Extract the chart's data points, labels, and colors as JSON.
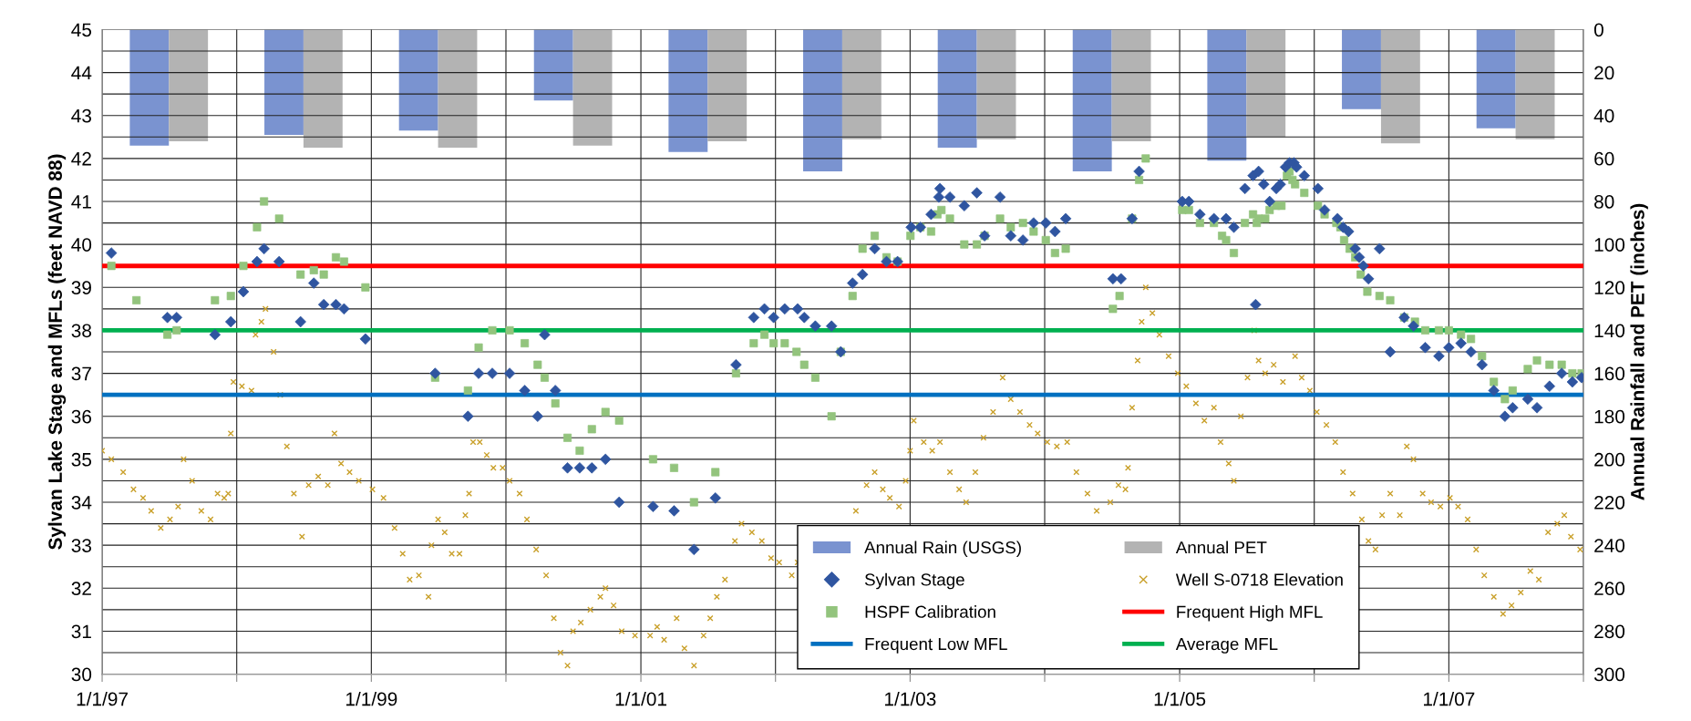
{
  "chart_data": {
    "type": "scatter",
    "ylabel": "Sylvan Lake Stage and MFLs (feet NAVD 88)",
    "y2label": "Annual Rainfall and PET (inches)",
    "xlim": [
      "1997-01-01",
      "2008-01-01"
    ],
    "xticks": [
      {
        "value": "1997-01-01",
        "label": "1/1/97"
      },
      {
        "value": "1998-01-01",
        "label": null
      },
      {
        "value": "1999-01-01",
        "label": "1/1/99"
      },
      {
        "value": "2000-01-01",
        "label": null
      },
      {
        "value": "2001-01-01",
        "label": "1/1/01"
      },
      {
        "value": "2002-01-01",
        "label": null
      },
      {
        "value": "2003-01-01",
        "label": "1/1/03"
      },
      {
        "value": "2004-01-01",
        "label": null
      },
      {
        "value": "2005-01-01",
        "label": "1/1/05"
      },
      {
        "value": "2006-01-01",
        "label": null
      },
      {
        "value": "2007-01-01",
        "label": "1/1/07"
      },
      {
        "value": "2008-01-01",
        "label": null
      }
    ],
    "ylim": [
      30,
      45
    ],
    "yticks": [
      30,
      {
        "value": 30.5,
        "label": null
      },
      31,
      {
        "value": 31.5,
        "label": null
      },
      32,
      {
        "value": 32.5,
        "label": null
      },
      33,
      {
        "value": 33.5,
        "label": null
      },
      34,
      {
        "value": 34.5,
        "label": null
      },
      35,
      {
        "value": 35.5,
        "label": null
      },
      36,
      {
        "value": 36.5,
        "label": null
      },
      37,
      {
        "value": 37.5,
        "label": null
      },
      38,
      {
        "value": 38.5,
        "label": null
      },
      39,
      {
        "value": 39.5,
        "label": null
      },
      40,
      {
        "value": 40.5,
        "label": null
      },
      41,
      {
        "value": 41.5,
        "label": null
      },
      42,
      {
        "value": 42.5,
        "label": null
      },
      43,
      {
        "value": 43.5,
        "label": null
      },
      44,
      {
        "value": 44.5,
        "label": null
      },
      45
    ],
    "y2lim": [
      300,
      0
    ],
    "y2ticks": [
      0,
      20,
      40,
      60,
      80,
      100,
      120,
      140,
      160,
      180,
      200,
      220,
      240,
      260,
      280,
      300
    ],
    "grid": true,
    "legend": "bottom",
    "series": [
      {
        "name": "Annual Rain (USGS)",
        "type": "bar",
        "axis": "y2",
        "color": "#7a93d0",
        "x": [
          "1997-07-01",
          "1998-07-01",
          "1999-07-01",
          "2000-07-01",
          "2001-07-01",
          "2002-07-01",
          "2003-07-01",
          "2004-07-01",
          "2005-07-01",
          "2006-07-01",
          "2007-07-01"
        ],
        "values": [
          54,
          49,
          47,
          33,
          57,
          66,
          55,
          66,
          61,
          37,
          46
        ]
      },
      {
        "name": "Annual PET",
        "type": "bar",
        "axis": "y2",
        "color": "#b3b3b3",
        "x": [
          "1997-07-01",
          "1998-07-01",
          "1999-07-01",
          "2000-07-01",
          "2001-07-01",
          "2002-07-01",
          "2003-07-01",
          "2004-07-01",
          "2005-07-01",
          "2006-07-01",
          "2007-07-01"
        ],
        "values": [
          52,
          55,
          55,
          54,
          52,
          51,
          51,
          52,
          50,
          53,
          51
        ]
      },
      {
        "name": "Sylvan Stage",
        "marker": "diamond",
        "color": "#2f55a0",
        "x": [
          "1997-01-26",
          "1997-06-27",
          "1997-07-22",
          "1997-11-03",
          "1997-12-16",
          "1998-01-19",
          "1998-02-25",
          "1998-03-16",
          "1998-04-26",
          "1998-06-23",
          "1998-07-29",
          "1998-08-25",
          "1998-09-27",
          "1998-10-19",
          "1998-12-16",
          "1999-06-23",
          "1999-09-20",
          "1999-10-19",
          "1999-11-25",
          "2000-01-11",
          "2000-02-21",
          "2000-03-27",
          "2000-04-15",
          "2000-05-14",
          "2000-06-16",
          "2000-07-19",
          "2000-08-21",
          "2000-09-27",
          "2000-11-03",
          "2001-02-03",
          "2001-04-01",
          "2001-05-25",
          "2001-07-22",
          "2001-09-16",
          "2001-11-03",
          "2001-12-02",
          "2001-12-27",
          "2002-01-26",
          "2002-03-02",
          "2002-03-20",
          "2002-04-19",
          "2002-06-02",
          "2002-06-27",
          "2002-07-29",
          "2002-08-25",
          "2002-09-27",
          "2002-10-29",
          "2002-11-28",
          "2003-01-04",
          "2003-01-29",
          "2003-02-27",
          "2003-03-20",
          "2003-03-23",
          "2003-04-19",
          "2003-05-28",
          "2003-07-01",
          "2003-07-22",
          "2003-09-02",
          "2003-10-01",
          "2003-11-03",
          "2003-12-02",
          "2004-01-04",
          "2004-01-29",
          "2004-02-27",
          "2004-07-04",
          "2004-07-26",
          "2004-08-25",
          "2004-09-13",
          "2005-01-08",
          "2005-01-26",
          "2005-02-25",
          "2005-04-04",
          "2005-05-07",
          "2005-05-28",
          "2005-06-27",
          "2005-07-19",
          "2005-07-26",
          "2005-08-03",
          "2005-08-17",
          "2005-09-02",
          "2005-09-20",
          "2005-10-01",
          "2005-10-15",
          "2005-10-26",
          "2005-11-07",
          "2005-11-14",
          "2005-12-05",
          "2006-01-11",
          "2006-01-29",
          "2006-03-05",
          "2006-03-20",
          "2006-04-04",
          "2006-04-22",
          "2006-05-03",
          "2006-05-14",
          "2006-05-28",
          "2006-06-27",
          "2006-07-26",
          "2006-09-02",
          "2006-09-27",
          "2006-10-29",
          "2006-12-05",
          "2007-01-01",
          "2007-02-03",
          "2007-03-02",
          "2007-04-01",
          "2007-05-03",
          "2007-06-02",
          "2007-06-23",
          "2007-08-03",
          "2007-08-28",
          "2007-10-01",
          "2007-11-03",
          "2007-12-02",
          "2007-12-27"
        ],
        "values": [
          39.8,
          38.3,
          38.3,
          37.9,
          38.2,
          38.9,
          39.6,
          39.9,
          39.6,
          38.2,
          39.1,
          38.6,
          38.6,
          38.5,
          37.8,
          37.0,
          36.0,
          37.0,
          37.0,
          37.0,
          36.6,
          36.0,
          37.9,
          36.6,
          34.8,
          34.8,
          34.8,
          35.0,
          34.0,
          33.9,
          33.8,
          32.9,
          34.1,
          37.2,
          38.3,
          38.5,
          38.3,
          38.5,
          38.5,
          38.3,
          38.1,
          38.1,
          37.5,
          39.1,
          39.3,
          39.9,
          39.6,
          39.6,
          40.4,
          40.4,
          40.7,
          41.1,
          41.3,
          41.1,
          40.9,
          41.2,
          40.2,
          41.1,
          40.2,
          40.1,
          40.5,
          40.5,
          40.3,
          40.6,
          39.2,
          39.2,
          40.6,
          41.7,
          41.0,
          41.0,
          40.7,
          40.6,
          40.6,
          40.4,
          41.3,
          41.6,
          38.6,
          41.7,
          41.4,
          41.0,
          41.3,
          41.4,
          41.8,
          41.9,
          41.9,
          41.8,
          41.6,
          41.3,
          40.8,
          40.6,
          40.4,
          40.3,
          39.9,
          39.7,
          39.5,
          39.2,
          39.9,
          37.5,
          38.3,
          38.1,
          37.6,
          37.4,
          37.6,
          37.7,
          37.5,
          37.2,
          36.6,
          36.0,
          36.2,
          36.4,
          36.2,
          36.7,
          37.0,
          36.8,
          36.9
        ]
      },
      {
        "name": "Well S-0718 Elevation",
        "marker": "cross",
        "color": "#c9a02a",
        "x": [
          "1997-01-01",
          "1997-01-26",
          "1997-02-27",
          "1997-03-27",
          "1997-04-22",
          "1997-05-14",
          "1997-06-09",
          "1997-07-04",
          "1997-07-26",
          "1997-08-10",
          "1997-09-02",
          "1997-09-27",
          "1997-10-22",
          "1997-11-10",
          "1997-11-28",
          "1997-12-09",
          "1997-12-16",
          "1997-12-23",
          "1998-01-15",
          "1998-02-10",
          "1998-02-21",
          "1998-03-09",
          "1998-03-20",
          "1998-04-11",
          "1998-04-29",
          "1998-05-17",
          "1998-06-05",
          "1998-06-27",
          "1998-07-15",
          "1998-08-10",
          "1998-09-05",
          "1998-09-23",
          "1998-10-11",
          "1998-11-03",
          "1998-11-28",
          "1999-01-04",
          "1999-02-03",
          "1999-03-05",
          "1999-03-27",
          "1999-04-15",
          "1999-05-10",
          "1999-06-05",
          "1999-06-13",
          "1999-07-01",
          "1999-07-19",
          "1999-08-07",
          "1999-08-28",
          "1999-09-13",
          "1999-09-23",
          "1999-10-04",
          "1999-10-22",
          "1999-11-10",
          "1999-11-28",
          "1999-12-23",
          "2000-01-11",
          "2000-02-07",
          "2000-02-27",
          "2000-03-23",
          "2000-04-19",
          "2000-05-10",
          "2000-05-28",
          "2000-06-16",
          "2000-07-01",
          "2000-07-22",
          "2000-08-17",
          "2000-09-13",
          "2000-09-27",
          "2000-10-19",
          "2000-11-10",
          "2000-12-16",
          "2001-01-26",
          "2001-02-14",
          "2001-03-05",
          "2001-04-08",
          "2001-04-29",
          "2001-05-25",
          "2001-06-20",
          "2001-07-08",
          "2001-07-26",
          "2001-08-17",
          "2001-09-13",
          "2001-10-01",
          "2001-10-29",
          "2001-11-25",
          "2001-12-20",
          "2002-01-11",
          "2002-02-14",
          "2002-03-02",
          "2002-08-07",
          "2002-09-05",
          "2002-09-27",
          "2002-10-19",
          "2002-11-07",
          "2002-12-02",
          "2002-12-20",
          "2003-01-01",
          "2003-01-11",
          "2003-02-07",
          "2003-03-02",
          "2003-03-23",
          "2003-04-19",
          "2003-05-14",
          "2003-06-02",
          "2003-06-27",
          "2003-07-19",
          "2003-08-14",
          "2003-09-09",
          "2003-10-01",
          "2003-10-26",
          "2003-11-21",
          "2003-12-13",
          "2004-01-08",
          "2004-02-03",
          "2004-03-02",
          "2004-03-27",
          "2004-04-26",
          "2004-05-21",
          "2004-06-27",
          "2004-07-19",
          "2004-08-07",
          "2004-08-14",
          "2004-08-25",
          "2004-09-09",
          "2004-09-20",
          "2004-10-01",
          "2004-10-19",
          "2004-11-07",
          "2004-12-02",
          "2004-12-27",
          "2005-01-19",
          "2005-02-14",
          "2005-03-09",
          "2005-04-04",
          "2005-04-22",
          "2005-05-14",
          "2005-05-28",
          "2005-06-16",
          "2005-07-04",
          "2005-07-22",
          "2005-08-03",
          "2005-08-21",
          "2005-09-13",
          "2005-10-08",
          "2005-11-10",
          "2005-11-28",
          "2005-12-20",
          "2006-01-08",
          "2006-02-03",
          "2006-02-27",
          "2006-03-20",
          "2006-04-15",
          "2006-05-10",
          "2006-05-28",
          "2006-06-16",
          "2006-07-04",
          "2006-07-26",
          "2006-08-21",
          "2006-09-09",
          "2006-09-27",
          "2006-10-22",
          "2006-11-14",
          "2006-12-09",
          "2007-01-04",
          "2007-01-26",
          "2007-02-21",
          "2007-03-16",
          "2007-04-07",
          "2007-05-03",
          "2007-05-28",
          "2007-06-20",
          "2007-07-15",
          "2007-08-10",
          "2007-09-02",
          "2007-09-27",
          "2007-10-22",
          "2007-11-10",
          "2007-11-28",
          "2007-12-23"
        ],
        "values": [
          35.2,
          35.0,
          34.7,
          34.3,
          34.1,
          33.8,
          33.4,
          33.6,
          33.9,
          35.0,
          34.5,
          33.8,
          33.6,
          34.2,
          34.1,
          34.2,
          35.6,
          36.8,
          36.7,
          36.6,
          37.9,
          38.2,
          38.5,
          37.5,
          36.5,
          35.3,
          34.2,
          33.2,
          34.4,
          34.6,
          34.4,
          35.6,
          34.9,
          34.7,
          34.5,
          34.3,
          34.1,
          33.4,
          32.8,
          32.2,
          32.3,
          31.8,
          33.0,
          33.6,
          33.3,
          32.8,
          32.8,
          33.7,
          34.2,
          35.4,
          35.4,
          35.1,
          34.8,
          34.8,
          34.5,
          34.2,
          33.6,
          32.9,
          32.3,
          31.3,
          30.5,
          30.2,
          31.0,
          31.2,
          31.5,
          31.8,
          32.0,
          31.6,
          31.0,
          30.9,
          30.9,
          31.1,
          30.8,
          31.3,
          30.6,
          30.2,
          30.9,
          31.3,
          31.8,
          32.2,
          33.1,
          33.5,
          33.3,
          33.1,
          32.7,
          32.6,
          32.3,
          32.6,
          33.8,
          34.4,
          34.7,
          34.3,
          34.1,
          33.9,
          34.5,
          35.2,
          35.9,
          35.4,
          35.2,
          35.4,
          34.7,
          34.3,
          34.0,
          34.7,
          35.5,
          36.1,
          36.9,
          36.4,
          36.1,
          35.8,
          35.6,
          35.4,
          35.3,
          35.4,
          34.7,
          34.2,
          33.8,
          34.0,
          34.4,
          34.3,
          34.8,
          36.2,
          37.3,
          38.2,
          39.0,
          38.4,
          37.9,
          37.4,
          37.0,
          36.7,
          36.3,
          35.9,
          36.2,
          35.4,
          34.9,
          34.5,
          36.0,
          36.9,
          38.0,
          37.3,
          37.0,
          37.2,
          36.8,
          37.4,
          36.9,
          36.6,
          36.1,
          35.8,
          35.4,
          34.7,
          34.2,
          33.6,
          33.1,
          32.9,
          33.7,
          34.2,
          33.7,
          35.3,
          35.0,
          34.2,
          34.0,
          33.9,
          34.1,
          33.9,
          33.6,
          32.9,
          32.3,
          31.8,
          31.4,
          31.6,
          31.9,
          32.4,
          32.2,
          33.3,
          33.5,
          33.7,
          33.2,
          32.9
        ]
      },
      {
        "name": "HSPF Calibration",
        "marker": "square",
        "color": "#93c47d",
        "x": [
          "1997-01-26",
          "1997-04-04",
          "1997-06-27",
          "1997-07-22",
          "1997-11-03",
          "1997-12-16",
          "1998-01-19",
          "1998-02-25",
          "1998-03-16",
          "1998-04-26",
          "1998-06-23",
          "1998-07-29",
          "1998-08-25",
          "1998-09-27",
          "1998-10-19",
          "1998-12-16",
          "1999-06-23",
          "1999-09-20",
          "1999-10-19",
          "1999-11-25",
          "2000-01-11",
          "2000-02-21",
          "2000-03-27",
          "2000-04-15",
          "2000-05-14",
          "2000-06-16",
          "2000-07-19",
          "2000-08-21",
          "2000-09-27",
          "2000-11-03",
          "2001-02-03",
          "2001-04-01",
          "2001-05-25",
          "2001-07-22",
          "2001-09-16",
          "2001-11-03",
          "2001-12-02",
          "2001-12-27",
          "2002-01-26",
          "2002-02-27",
          "2002-03-20",
          "2002-04-19",
          "2002-06-02",
          "2002-06-27",
          "2002-07-29",
          "2002-08-25",
          "2002-09-27",
          "2002-10-29",
          "2002-11-28",
          "2003-01-02",
          "2003-01-29",
          "2003-02-27",
          "2003-03-16",
          "2003-03-27",
          "2003-04-19",
          "2003-05-28",
          "2003-07-01",
          "2003-07-22",
          "2003-09-02",
          "2003-10-01",
          "2003-11-03",
          "2003-12-02",
          "2004-01-04",
          "2004-01-29",
          "2004-02-27",
          "2004-07-04",
          "2004-07-22",
          "2004-08-25",
          "2004-09-13",
          "2004-10-01",
          "2005-01-08",
          "2005-01-26",
          "2005-02-25",
          "2005-04-04",
          "2005-04-26",
          "2005-05-07",
          "2005-05-28",
          "2005-06-27",
          "2005-07-19",
          "2005-07-29",
          "2005-08-03",
          "2005-08-21",
          "2005-09-02",
          "2005-09-20",
          "2005-10-04",
          "2005-10-19",
          "2005-10-26",
          "2005-11-03",
          "2005-11-10",
          "2005-12-05",
          "2006-01-11",
          "2006-01-29",
          "2006-03-02",
          "2006-03-13",
          "2006-03-23",
          "2006-04-07",
          "2006-04-22",
          "2006-05-07",
          "2006-05-25",
          "2006-06-27",
          "2006-07-26",
          "2006-09-02",
          "2006-10-01",
          "2006-10-29",
          "2006-12-05",
          "2007-01-01",
          "2007-02-03",
          "2007-03-02",
          "2007-04-01",
          "2007-05-03",
          "2007-06-02",
          "2007-06-23",
          "2007-08-03",
          "2007-08-28",
          "2007-10-01",
          "2007-11-03",
          "2007-12-02",
          "2007-12-27"
        ],
        "values": [
          39.5,
          38.7,
          37.9,
          38.0,
          38.7,
          38.8,
          39.5,
          40.4,
          41.0,
          40.6,
          39.3,
          39.4,
          39.3,
          39.7,
          39.6,
          39.0,
          36.9,
          36.6,
          37.6,
          38.0,
          38.0,
          37.7,
          37.2,
          36.9,
          36.3,
          35.5,
          35.2,
          35.7,
          36.1,
          35.9,
          35.0,
          34.8,
          34.0,
          34.7,
          37.0,
          37.7,
          37.9,
          37.7,
          37.7,
          37.5,
          37.2,
          36.9,
          36.0,
          37.5,
          38.8,
          39.9,
          40.2,
          39.7,
          39.6,
          40.2,
          40.4,
          40.3,
          40.7,
          40.8,
          40.6,
          40.0,
          40.0,
          40.2,
          40.6,
          40.4,
          40.5,
          40.3,
          40.1,
          39.8,
          39.9,
          38.5,
          38.8,
          40.6,
          41.5,
          42.0,
          40.8,
          40.8,
          40.5,
          40.5,
          40.2,
          40.1,
          39.8,
          40.5,
          40.7,
          40.5,
          40.6,
          40.6,
          40.8,
          40.9,
          40.9,
          41.6,
          41.7,
          41.5,
          41.4,
          41.2,
          40.9,
          40.7,
          40.5,
          40.4,
          40.1,
          39.9,
          39.7,
          39.3,
          38.9,
          38.8,
          38.7,
          38.3,
          38.2,
          38.0,
          38.0,
          38.0,
          37.9,
          37.8,
          37.4,
          36.8,
          36.4,
          36.6,
          37.1,
          37.3,
          37.2,
          37.2,
          37.0,
          37.0
        ]
      }
    ],
    "ref_lines": [
      {
        "axis": "y",
        "value": 39.5,
        "label": "Frequent High MFL",
        "color": "#ff0000"
      },
      {
        "axis": "y",
        "value": 36.5,
        "label": "Frequent Low MFL",
        "color": "#0070c0"
      },
      {
        "axis": "y",
        "value": 38,
        "label": "Average MFL",
        "color": "#00b050"
      }
    ]
  }
}
